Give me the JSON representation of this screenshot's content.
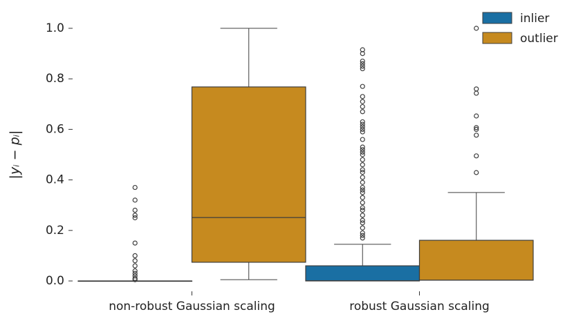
{
  "chart_data": {
    "type": "box",
    "ylabel": "|yᵢ − pᵢ|",
    "categories": [
      "non-robust Gaussian scaling",
      "robust Gaussian scaling"
    ],
    "ylim": [
      -0.04,
      1.05
    ],
    "yticks": [
      {
        "value": 0,
        "label": "0.0"
      },
      0.2,
      0.4,
      0.6,
      0.8,
      {
        "value": 1,
        "label": "1.0"
      }
    ],
    "legend": "upper right",
    "series": [
      {
        "name": "inlier",
        "color": "#1a6fa3",
        "boxes": [
          {
            "whislo": 0,
            "q1": 0,
            "med": 0,
            "q3": 0,
            "whishi": 0,
            "fliers": [
              0.37,
              0.32,
              0.28,
              0.26,
              0.25,
              0.15,
              0.1,
              0.08,
              0.06,
              0.04,
              0.03,
              0.02,
              0.01,
              0.005
            ]
          },
          {
            "whislo": 0,
            "q1": 0,
            "med": 0.001,
            "q3": 0.06,
            "whishi": 0.145,
            "fliers": [
              0.915,
              0.9,
              0.87,
              0.86,
              0.85,
              0.84,
              0.77,
              0.73,
              0.71,
              0.69,
              0.67,
              0.63,
              0.62,
              0.61,
              0.6,
              0.59,
              0.56,
              0.53,
              0.52,
              0.51,
              0.5,
              0.48,
              0.46,
              0.44,
              0.43,
              0.41,
              0.39,
              0.37,
              0.36,
              0.35,
              0.33,
              0.31,
              0.29,
              0.28,
              0.26,
              0.24,
              0.23,
              0.21,
              0.19,
              0.18,
              0.17
            ]
          }
        ]
      },
      {
        "name": "outlier",
        "color": "#c68a1f",
        "boxes": [
          {
            "whislo": 0.005,
            "q1": 0.074,
            "med": 0.251,
            "q3": 0.768,
            "whishi": 1.0,
            "fliers": []
          },
          {
            "whislo": 0.003,
            "q1": 0.003,
            "med": 0.003,
            "q3": 0.161,
            "whishi": 0.35,
            "fliers": [
              1.0,
              0.76,
              0.743,
              0.653,
              0.607,
              0.6,
              0.577,
              0.495,
              0.429
            ]
          }
        ]
      }
    ]
  }
}
